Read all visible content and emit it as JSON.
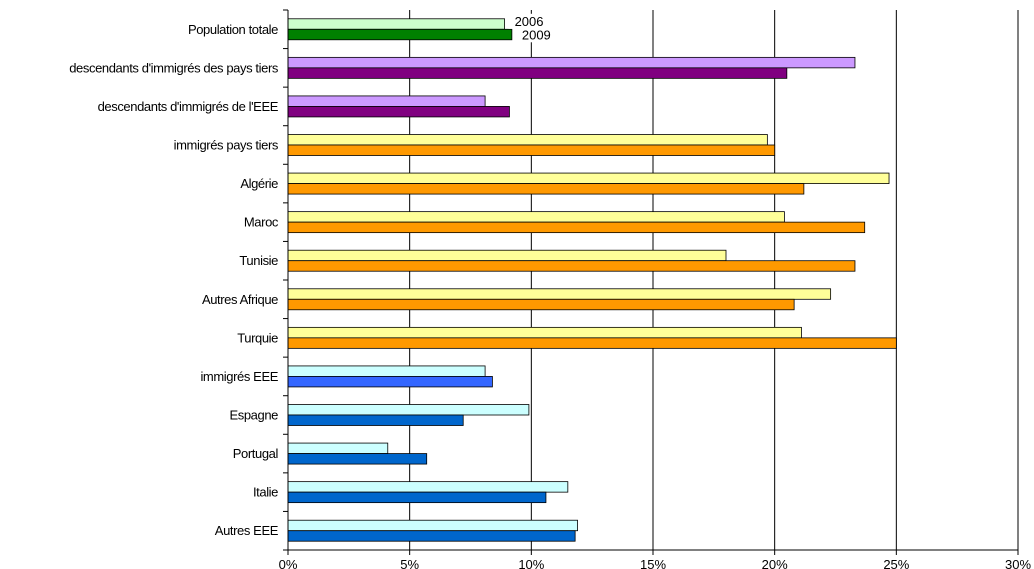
{
  "chart_data": {
    "type": "bar",
    "orientation": "horizontal",
    "categories": [
      "Population totale",
      "descendants d'immigrés des pays tiers",
      "descendants d'immigrés de l'EEE",
      "immigrés pays tiers",
      "Algérie",
      "Maroc",
      "Tunisie",
      "Autres Afrique",
      "Turquie",
      "immigrés EEE",
      "Espagne",
      "Portugal",
      "Italie",
      "Autres EEE"
    ],
    "series": [
      {
        "name": "2006",
        "values": [
          8.9,
          23.3,
          8.1,
          19.7,
          24.7,
          20.4,
          18.0,
          22.3,
          21.1,
          8.1,
          9.9,
          4.1,
          11.5,
          11.9
        ]
      },
      {
        "name": "2009",
        "values": [
          9.2,
          20.5,
          9.1,
          20.0,
          21.2,
          23.7,
          23.3,
          20.8,
          25.0,
          8.4,
          7.2,
          5.7,
          10.6,
          11.8
        ]
      }
    ],
    "bar_colors": {
      "2006": [
        "#ccffcc",
        "#cc99ff",
        "#cc99ff",
        "#ffff99",
        "#ffff99",
        "#ffff99",
        "#ffff99",
        "#ffff99",
        "#ffff99",
        "#ccffff",
        "#ccffff",
        "#ccffff",
        "#ccffff",
        "#ccffff"
      ],
      "2009": [
        "#008000",
        "#800080",
        "#800080",
        "#ff9900",
        "#ff9900",
        "#ff9900",
        "#ff9900",
        "#ff9900",
        "#ff9900",
        "#3366ff",
        "#0066cc",
        "#0066cc",
        "#0066cc",
        "#0066cc"
      ]
    },
    "xlim": [
      0,
      30
    ],
    "xticks": [
      0,
      5,
      10,
      15,
      20,
      25,
      30
    ],
    "xtick_labels": [
      "0%",
      "5%",
      "10%",
      "15%",
      "20%",
      "25%",
      "30%"
    ],
    "grid": "vertical",
    "legend": "inline labels on first category",
    "title": "",
    "xlabel": "",
    "ylabel": ""
  }
}
